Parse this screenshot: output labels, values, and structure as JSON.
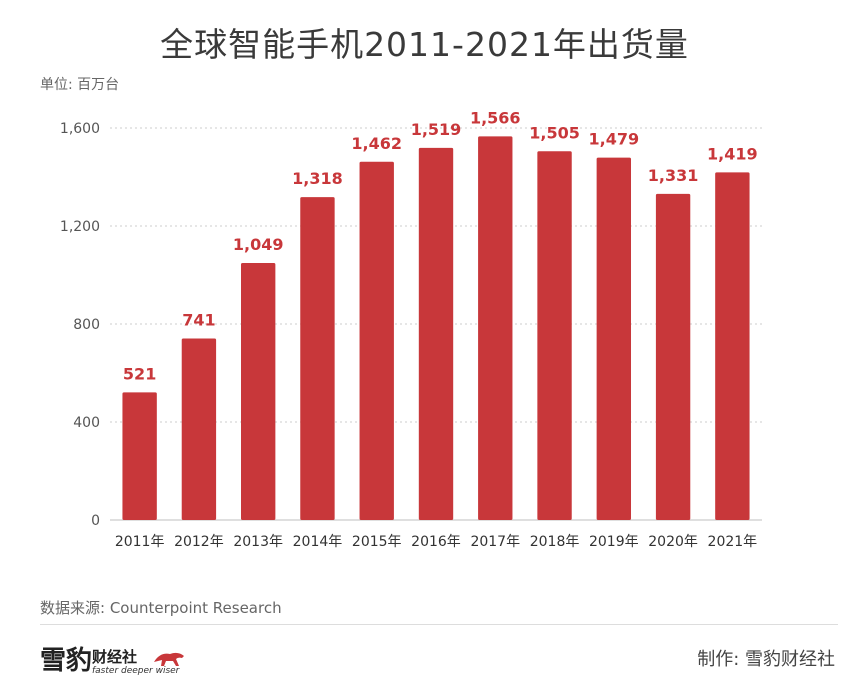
{
  "header": {
    "title": "全球智能手机2011-2021年出货量",
    "unit": "单位: 百万台"
  },
  "footer": {
    "source": "数据来源: Counterpoint Research",
    "logo_main": "雪豹",
    "logo_sub": "财经社",
    "logo_tagline": "faster deeper wiser",
    "maker": "制作:  雪豹财经社"
  },
  "colors": {
    "bar": "#c8373a",
    "label": "#c8373a",
    "axis": "#555555",
    "grid": "#cccccc"
  },
  "chart_data": {
    "type": "bar",
    "title": "全球智能手机2011-2021年出货量",
    "ylabel": "单位: 百万台",
    "xlabel": "",
    "categories": [
      "2011年",
      "2012年",
      "2013年",
      "2014年",
      "2015年",
      "2016年",
      "2017年",
      "2018年",
      "2019年",
      "2020年",
      "2021年"
    ],
    "values": [
      521,
      741,
      1049,
      1318,
      1462,
      1519,
      1566,
      1505,
      1479,
      1331,
      1419
    ],
    "value_labels": [
      "521",
      "741",
      "1,049",
      "1,318",
      "1,462",
      "1,519",
      "1,566",
      "1,505",
      "1,479",
      "1,331",
      "1,419"
    ],
    "ylim": [
      0,
      1600
    ],
    "yticks": [
      0,
      400,
      800,
      1200,
      1600
    ],
    "ytick_labels": [
      "0",
      "400",
      "800",
      "1,200",
      "1,600"
    ],
    "grid": "dotted horizontal",
    "legend": "none"
  }
}
